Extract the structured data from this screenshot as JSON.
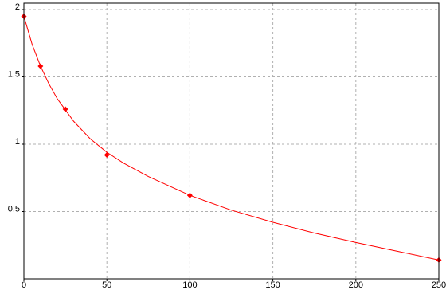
{
  "chart_data": {
    "type": "scatter",
    "xlim": [
      0,
      250
    ],
    "ylim": [
      0,
      2
    ],
    "xticks": [
      0,
      50,
      100,
      150,
      200,
      250
    ],
    "yticks": [
      0.5,
      1,
      1.5,
      2
    ],
    "grid": true,
    "series": [
      {
        "mode": "line",
        "color": "#ff0000",
        "x": [
          0,
          5,
          10,
          15,
          20,
          30,
          40,
          50,
          60,
          75,
          100,
          125,
          150,
          175,
          200,
          225,
          250
        ],
        "values": [
          1.95,
          1.74,
          1.58,
          1.45,
          1.34,
          1.17,
          1.04,
          0.94,
          0.86,
          0.76,
          0.62,
          0.51,
          0.42,
          0.34,
          0.27,
          0.205,
          0.14
        ]
      },
      {
        "mode": "markers",
        "color": "#ff0000",
        "x": [
          0,
          10,
          25,
          50,
          100,
          250
        ],
        "values": [
          1.95,
          1.58,
          1.26,
          0.92,
          0.62,
          0.14
        ]
      }
    ]
  }
}
